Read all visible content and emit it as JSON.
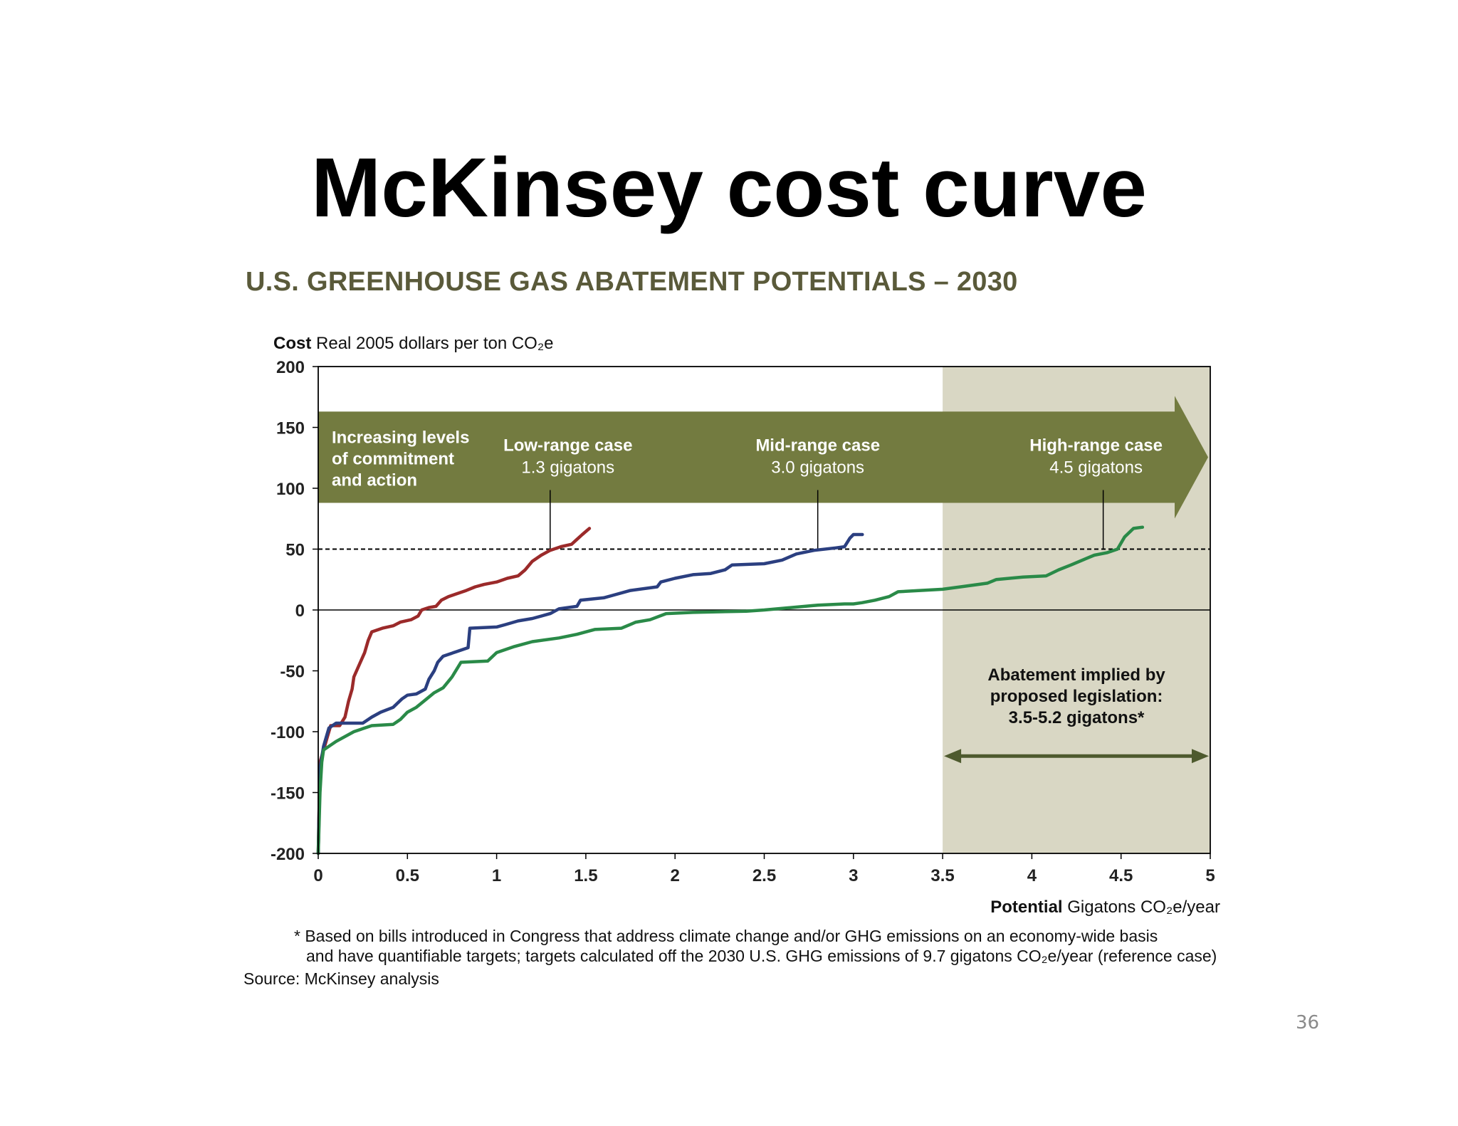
{
  "slide": {
    "title": "McKinsey cost curve",
    "page_number": "36"
  },
  "chart_data": {
    "type": "line",
    "title": "U.S. GREENHOUSE GAS ABATEMENT POTENTIALS – 2030",
    "ylabel_bold": "Cost",
    "ylabel": "Real 2005 dollars per ton CO₂e",
    "xlabel_bold": "Potential",
    "xlabel": "Gigatons CO₂e/year",
    "xlim": [
      0,
      5
    ],
    "ylim": [
      -200,
      200
    ],
    "x_ticks": [
      0,
      0.5,
      1,
      1.5,
      2,
      2.5,
      3,
      3.5,
      4,
      4.5,
      5
    ],
    "x_tick_labels": [
      "0",
      "0.5",
      "1",
      "1.5",
      "2",
      "2.5",
      "3",
      "3.5",
      "4",
      "4.5",
      "5"
    ],
    "y_ticks": [
      200,
      150,
      100,
      50,
      0,
      -50,
      -100,
      -150,
      -200
    ],
    "y_tick_labels": [
      "200",
      "150",
      "100",
      "50",
      "0",
      "-50",
      "-100",
      "-150",
      "-200"
    ],
    "reference_line": {
      "y": 50,
      "style": "dashed"
    },
    "shaded_region": {
      "x_from": 3.5,
      "x_to": 5,
      "color": "#d9d7c4"
    },
    "colors": {
      "low": "#9b2a2a",
      "mid": "#2b3f80",
      "high": "#2a8a48",
      "banner": "#737b40",
      "arrow": "#4e5a2e"
    },
    "banner": {
      "text_lines": [
        "Increasing levels",
        "of commitment",
        "and action"
      ],
      "y_from": 88,
      "y_to": 163
    },
    "cases": [
      {
        "label": "Low-range case",
        "value": "1.3 gigatons",
        "x": 1.3
      },
      {
        "label": "Mid-range case",
        "value": "3.0 gigatons",
        "x": 2.8
      },
      {
        "label": "High-range case",
        "value": "4.5 gigatons",
        "x": 4.4
      }
    ],
    "annotation": {
      "lines": [
        "Abatement implied by",
        "proposed legislation:",
        "3.5-5.2 gigatons*"
      ],
      "arrow_x": [
        3.5,
        5
      ],
      "arrow_y": -120
    },
    "series": [
      {
        "key": "low",
        "points": [
          [
            0,
            -200
          ],
          [
            0.01,
            -125
          ],
          [
            0.03,
            -115
          ],
          [
            0.05,
            -105
          ],
          [
            0.07,
            -95
          ],
          [
            0.12,
            -95
          ],
          [
            0.15,
            -88
          ],
          [
            0.17,
            -75
          ],
          [
            0.19,
            -65
          ],
          [
            0.2,
            -55
          ],
          [
            0.23,
            -45
          ],
          [
            0.26,
            -35
          ],
          [
            0.28,
            -25
          ],
          [
            0.3,
            -18
          ],
          [
            0.36,
            -15
          ],
          [
            0.42,
            -13
          ],
          [
            0.46,
            -10
          ],
          [
            0.52,
            -8
          ],
          [
            0.56,
            -5
          ],
          [
            0.58,
            0
          ],
          [
            0.62,
            2
          ],
          [
            0.66,
            3
          ],
          [
            0.69,
            8
          ],
          [
            0.73,
            11
          ],
          [
            0.77,
            13
          ],
          [
            0.83,
            16
          ],
          [
            0.88,
            19
          ],
          [
            0.93,
            21
          ],
          [
            1.0,
            23
          ],
          [
            1.06,
            26
          ],
          [
            1.12,
            28
          ],
          [
            1.16,
            33
          ],
          [
            1.2,
            40
          ],
          [
            1.25,
            45
          ],
          [
            1.3,
            49
          ],
          [
            1.36,
            52
          ],
          [
            1.42,
            54
          ],
          [
            1.45,
            58
          ],
          [
            1.48,
            62
          ],
          [
            1.52,
            67
          ]
        ]
      },
      {
        "key": "mid",
        "points": [
          [
            0,
            -200
          ],
          [
            0.01,
            -130
          ],
          [
            0.03,
            -112
          ],
          [
            0.06,
            -97
          ],
          [
            0.1,
            -93
          ],
          [
            0.25,
            -93
          ],
          [
            0.3,
            -88
          ],
          [
            0.35,
            -84
          ],
          [
            0.42,
            -80
          ],
          [
            0.47,
            -73
          ],
          [
            0.5,
            -70
          ],
          [
            0.55,
            -69
          ],
          [
            0.6,
            -65
          ],
          [
            0.62,
            -57
          ],
          [
            0.65,
            -50
          ],
          [
            0.67,
            -43
          ],
          [
            0.7,
            -38
          ],
          [
            0.78,
            -34
          ],
          [
            0.84,
            -31
          ],
          [
            0.85,
            -15
          ],
          [
            1.0,
            -14
          ],
          [
            1.05,
            -12
          ],
          [
            1.12,
            -9
          ],
          [
            1.2,
            -7
          ],
          [
            1.3,
            -3
          ],
          [
            1.35,
            1
          ],
          [
            1.45,
            3
          ],
          [
            1.47,
            8
          ],
          [
            1.6,
            10
          ],
          [
            1.65,
            12
          ],
          [
            1.75,
            16
          ],
          [
            1.9,
            19
          ],
          [
            1.92,
            23
          ],
          [
            2.0,
            26
          ],
          [
            2.1,
            29
          ],
          [
            2.2,
            30
          ],
          [
            2.28,
            33
          ],
          [
            2.32,
            37
          ],
          [
            2.5,
            38
          ],
          [
            2.6,
            41
          ],
          [
            2.68,
            46
          ],
          [
            2.78,
            49
          ],
          [
            2.9,
            51
          ],
          [
            2.95,
            52
          ],
          [
            2.98,
            59
          ],
          [
            3.0,
            62
          ],
          [
            3.05,
            62
          ]
        ]
      },
      {
        "key": "high",
        "points": [
          [
            0,
            -200
          ],
          [
            0.01,
            -150
          ],
          [
            0.02,
            -125
          ],
          [
            0.03,
            -115
          ],
          [
            0.1,
            -108
          ],
          [
            0.2,
            -100
          ],
          [
            0.3,
            -95
          ],
          [
            0.42,
            -94
          ],
          [
            0.46,
            -90
          ],
          [
            0.5,
            -84
          ],
          [
            0.55,
            -80
          ],
          [
            0.6,
            -74
          ],
          [
            0.65,
            -68
          ],
          [
            0.7,
            -64
          ],
          [
            0.75,
            -55
          ],
          [
            0.8,
            -43
          ],
          [
            0.95,
            -42
          ],
          [
            1.0,
            -35
          ],
          [
            1.1,
            -30
          ],
          [
            1.2,
            -26
          ],
          [
            1.35,
            -23
          ],
          [
            1.45,
            -20
          ],
          [
            1.55,
            -16
          ],
          [
            1.7,
            -15
          ],
          [
            1.78,
            -10
          ],
          [
            1.86,
            -8
          ],
          [
            1.95,
            -3
          ],
          [
            2.1,
            -2
          ],
          [
            2.4,
            -1
          ],
          [
            2.5,
            0
          ],
          [
            2.65,
            2
          ],
          [
            2.8,
            4
          ],
          [
            2.95,
            5
          ],
          [
            3.0,
            5
          ],
          [
            3.05,
            6
          ],
          [
            3.12,
            8
          ],
          [
            3.2,
            11
          ],
          [
            3.25,
            15
          ],
          [
            3.5,
            17
          ],
          [
            3.6,
            19
          ],
          [
            3.75,
            22
          ],
          [
            3.8,
            25
          ],
          [
            3.95,
            27
          ],
          [
            4.08,
            28
          ],
          [
            4.15,
            33
          ],
          [
            4.22,
            37
          ],
          [
            4.3,
            42
          ],
          [
            4.35,
            45
          ],
          [
            4.42,
            47
          ],
          [
            4.48,
            50
          ],
          [
            4.52,
            60
          ],
          [
            4.57,
            67
          ],
          [
            4.62,
            68
          ]
        ]
      }
    ]
  },
  "footnotes": {
    "line1": "* Based on bills introduced in Congress that address climate change and/or GHG emissions on an economy-wide basis",
    "line2": "and have quantifiable targets; targets calculated off the 2030 U.S. GHG emissions of 9.7 gigatons CO₂e/year (reference case)",
    "source": "Source: McKinsey analysis"
  }
}
